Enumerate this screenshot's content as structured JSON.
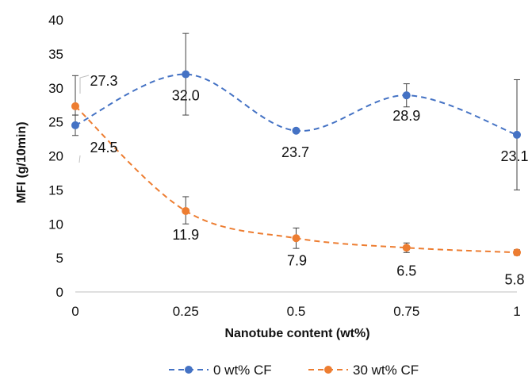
{
  "chart_data": {
    "type": "line",
    "title": "",
    "xlabel": "Nanotube content (wt%)",
    "ylabel": "MFI (g/10min)",
    "x": [
      0,
      0.25,
      0.5,
      0.75,
      1
    ],
    "x_tick_labels": [
      "0",
      "0.25",
      "0.5",
      "0.75",
      "1"
    ],
    "xlim": [
      0,
      1
    ],
    "ylim": [
      0,
      40
    ],
    "y_ticks": [
      0,
      5,
      10,
      15,
      20,
      25,
      30,
      35,
      40
    ],
    "grid": false,
    "legend_position": "bottom",
    "series": [
      {
        "name": "0 wt% CF",
        "color": "#4472C4",
        "values": [
          24.5,
          32.0,
          23.7,
          28.9,
          23.1
        ],
        "data_labels": [
          "24.5",
          "32.0",
          "23.7",
          "28.9",
          "23.1"
        ],
        "error_low": [
          23.0,
          26.0,
          23.4,
          27.2,
          15.0
        ],
        "error_high": [
          26.0,
          38.0,
          24.0,
          30.6,
          31.2
        ]
      },
      {
        "name": "30 wt% CF",
        "color": "#ED7D31",
        "values": [
          27.3,
          11.9,
          7.9,
          6.5,
          5.8
        ],
        "data_labels": [
          "27.3",
          "11.9",
          "7.9",
          "6.5",
          "5.8"
        ],
        "error_low": [
          26.0,
          10.0,
          6.4,
          5.8,
          5.4
        ],
        "error_high": [
          31.8,
          14.0,
          9.4,
          7.2,
          6.2
        ]
      }
    ]
  }
}
